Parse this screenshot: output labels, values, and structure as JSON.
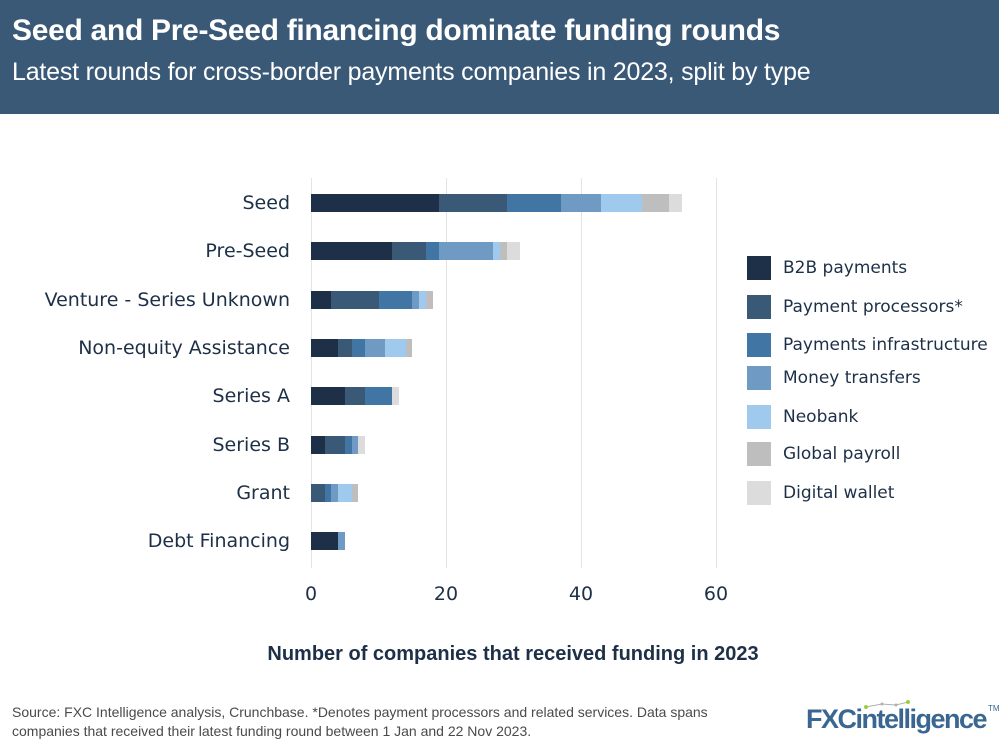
{
  "header": {
    "title": "Seed and Pre-Seed financing dominate funding rounds",
    "subtitle": "Latest rounds for cross-border payments companies in 2023, split by type",
    "background_color": "#3a5977"
  },
  "footer": {
    "source_line1": "Source: FXC Intelligence analysis, Crunchbase. *Denotes payment processors and related services. Data spans",
    "source_line2": "companies that received their latest funding round between 1 Jan and 22 Nov 2023.",
    "logo_text": "FXCintelligence",
    "logo_tm": "TM"
  },
  "chart_data": {
    "type": "bar",
    "orientation": "horizontal",
    "stacked": true,
    "title": "Seed and Pre-Seed financing dominate funding rounds",
    "subtitle": "Latest rounds for cross-border payments companies in 2023, split by type",
    "xlabel": "Number of companies that received funding in 2023",
    "ylabel": "",
    "xlim": [
      0,
      60
    ],
    "xticks": [
      "0",
      "20",
      "40",
      "60"
    ],
    "grid": true,
    "legend_position": "right",
    "categories": [
      "Seed",
      "Pre-Seed",
      "Venture - Series Unknown",
      "Non-equity Assistance",
      "Series A",
      "Series B",
      "Grant",
      "Debt Financing"
    ],
    "series": [
      {
        "name": "B2B payments",
        "color": "#1d3047",
        "values": [
          19,
          12,
          3,
          4,
          5,
          2,
          0,
          4
        ]
      },
      {
        "name": "Payment processors*",
        "color": "#3a5977",
        "values": [
          10,
          5,
          7,
          2,
          3,
          3,
          2,
          0
        ]
      },
      {
        "name": "Payments infrastructure",
        "color": "#4175a3",
        "values": [
          8,
          2,
          5,
          2,
          4,
          1,
          1,
          0
        ]
      },
      {
        "name": "Money transfers",
        "color": "#6f9ac4",
        "values": [
          6,
          8,
          1,
          3,
          0,
          1,
          1,
          1
        ]
      },
      {
        "name": "Neobank",
        "color": "#a0c9ee",
        "values": [
          6,
          1,
          1,
          3,
          0,
          0,
          2,
          0
        ]
      },
      {
        "name": "Global payroll",
        "color": "#bebebe",
        "values": [
          4,
          1,
          1,
          1,
          0,
          0,
          1,
          0
        ]
      },
      {
        "name": "Digital wallet",
        "color": "#dcdcdc",
        "values": [
          2,
          2,
          0,
          0,
          1,
          1,
          0,
          0
        ]
      }
    ],
    "totals": [
      55,
      31,
      18,
      15,
      13,
      8,
      7,
      5
    ]
  }
}
